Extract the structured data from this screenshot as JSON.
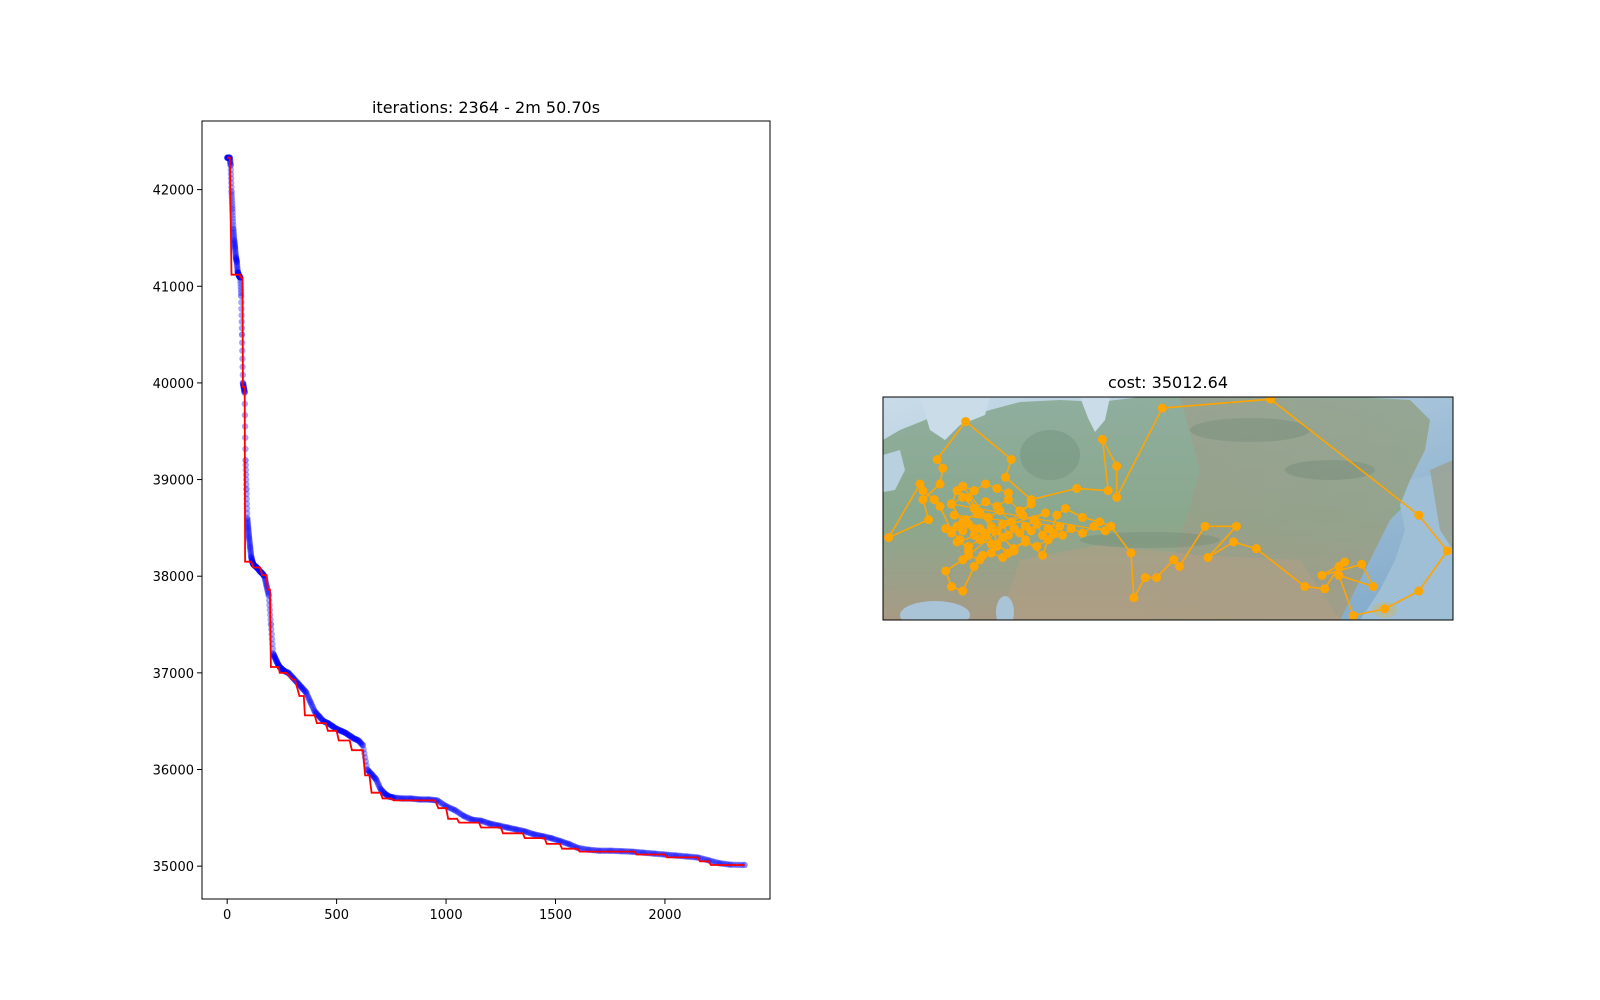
{
  "chart_data": [
    {
      "type": "line",
      "title": "iterations: 2364 - 2m 50.70s",
      "xlabel": "",
      "ylabel": "",
      "xlim": [
        -115,
        2480
      ],
      "ylim": [
        34660,
        42710
      ],
      "xticks": [
        0,
        500,
        1000,
        1500,
        2000
      ],
      "yticks": [
        35000,
        36000,
        37000,
        38000,
        39000,
        40000,
        41000,
        42000
      ],
      "grid": false,
      "legend": "none",
      "series": [
        {
          "kind": "best-cost-step",
          "color": "#ff0000",
          "x": [
            0,
            12,
            14,
            20,
            58,
            62,
            70,
            72,
            80,
            82,
            110,
            120,
            150,
            160,
            180,
            185,
            195,
            200,
            235,
            240,
            270,
            300,
            310,
            330,
            350,
            355,
            400,
            410,
            450,
            460,
            500,
            510,
            560,
            570,
            620,
            630,
            650,
            660,
            700,
            710,
            750,
            760,
            950,
            965,
            1000,
            1010,
            1050,
            1060,
            1150,
            1160,
            1250,
            1260,
            1350,
            1360,
            1450,
            1460,
            1520,
            1530,
            1600,
            1610,
            1860,
            1870,
            2000,
            2010,
            2150,
            2160,
            2200,
            2210,
            2364
          ],
          "y": [
            42330,
            42330,
            42060,
            41120,
            41120,
            41090,
            41090,
            39960,
            39960,
            38150,
            38150,
            38090,
            38090,
            38010,
            38010,
            37860,
            37860,
            37060,
            37060,
            37000,
            37000,
            36930,
            36930,
            36760,
            36760,
            36560,
            36560,
            36480,
            36480,
            36400,
            36400,
            36300,
            36300,
            36200,
            36200,
            35940,
            35940,
            35760,
            35760,
            35700,
            35700,
            35680,
            35680,
            35600,
            35600,
            35490,
            35490,
            35450,
            35450,
            35400,
            35400,
            35340,
            35340,
            35290,
            35290,
            35230,
            35230,
            35180,
            35180,
            35150,
            35150,
            35120,
            35120,
            35090,
            35090,
            35050,
            35050,
            35012,
            35012
          ]
        },
        {
          "kind": "candidate-cost-scatter",
          "color": "#0000ff",
          "x": [
            0,
            6,
            12,
            16,
            20,
            24,
            28,
            32,
            36,
            40,
            44,
            48,
            52,
            56,
            60,
            64,
            68,
            72,
            76,
            80,
            84,
            88,
            92,
            96,
            100,
            105,
            110,
            115,
            120,
            130,
            140,
            150,
            160,
            170,
            180,
            190,
            200,
            210,
            220,
            230,
            240,
            250,
            260,
            280,
            300,
            320,
            340,
            360,
            380,
            400,
            420,
            440,
            460,
            480,
            500,
            520,
            540,
            560,
            580,
            600,
            620,
            640,
            660,
            680,
            700,
            720,
            740,
            760,
            800,
            840,
            880,
            920,
            960,
            1000,
            1040,
            1080,
            1120,
            1160,
            1200,
            1240,
            1280,
            1320,
            1360,
            1400,
            1440,
            1480,
            1520,
            1560,
            1600,
            1650,
            1700,
            1750,
            1800,
            1850,
            1900,
            1950,
            2000,
            2050,
            2100,
            2150,
            2200,
            2250,
            2300,
            2364
          ],
          "y": [
            42330,
            42330,
            42330,
            42250,
            41980,
            41800,
            41600,
            41480,
            41400,
            41300,
            41250,
            41150,
            41120,
            41100,
            41090,
            40900,
            40500,
            40000,
            39950,
            39900,
            39200,
            38900,
            38600,
            38500,
            38400,
            38300,
            38200,
            38150,
            38120,
            38100,
            38080,
            38050,
            38030,
            38000,
            37900,
            37800,
            37500,
            37200,
            37150,
            37100,
            37060,
            37040,
            37020,
            37000,
            36950,
            36900,
            36850,
            36800,
            36700,
            36600,
            36550,
            36500,
            36480,
            36450,
            36420,
            36400,
            36380,
            36350,
            36320,
            36300,
            36250,
            36000,
            35950,
            35900,
            35800,
            35750,
            35720,
            35710,
            35700,
            35700,
            35690,
            35690,
            35680,
            35620,
            35580,
            35520,
            35480,
            35470,
            35440,
            35420,
            35400,
            35380,
            35360,
            35330,
            35310,
            35290,
            35260,
            35230,
            35190,
            35170,
            35160,
            35160,
            35155,
            35150,
            35140,
            35130,
            35120,
            35110,
            35100,
            35090,
            35060,
            35030,
            35015,
            35012
          ]
        }
      ]
    },
    {
      "type": "scatter",
      "title": "cost: 35012.64",
      "xlabel": "",
      "ylabel": "",
      "basemap": "shaded relief, northern Eurasia (Russia)",
      "line_color": "#ffa500",
      "marker_color": "#ffa500",
      "xlim": [
        0,
        100
      ],
      "ylim": [
        0,
        100
      ],
      "route": {
        "x": [
          1,
          8,
          7,
          10,
          10.5,
          9.5,
          14.5,
          22.5,
          21.5,
          26,
          34,
          39.5,
          38.5,
          41,
          41,
          49,
          68,
          94,
          99,
          94,
          88,
          82.5,
          80,
          86,
          84,
          77,
          81,
          80,
          77.5,
          74,
          65.5,
          61.5,
          57,
          62,
          56.5,
          52,
          51,
          48,
          46,
          44,
          43.5,
          40,
          38,
          35,
          32,
          30.5,
          28,
          25,
          22,
          20,
          18,
          16,
          14,
          12,
          13,
          15,
          17,
          19.5,
          20,
          17.5,
          16,
          14,
          12,
          11,
          14,
          15,
          13.5,
          12,
          10,
          9,
          7,
          6.5,
          1
        ],
        "y": [
          37,
          45,
          54,
          61,
          68,
          72,
          89,
          72,
          64,
          54,
          59,
          58,
          81,
          69,
          55,
          95,
          99,
          47,
          31,
          13,
          5,
          2,
          20,
          15,
          25,
          20,
          26,
          24,
          14,
          15,
          32,
          35,
          28,
          42,
          42,
          24,
          27,
          19,
          19,
          10,
          30,
          42,
          44,
          46,
          50,
          47,
          29,
          36,
          30,
          34,
          38,
          41,
          44,
          52,
          58,
          55,
          48,
          40,
          33,
          29,
          24,
          13,
          15,
          22,
          27,
          31,
          36,
          40,
          51,
          54,
          58,
          61,
          37
        ]
      },
      "cluster_points": {
        "x": [
          11,
          12,
          13,
          14,
          15,
          16,
          17,
          18,
          19,
          20,
          21,
          22,
          23,
          24,
          25,
          26,
          27,
          28,
          29,
          30,
          31,
          12.5,
          14.5,
          16.5,
          18.5,
          20.5,
          22.5,
          24.5,
          26.5,
          28.5,
          13,
          15,
          17,
          19,
          21,
          23,
          25,
          27,
          29,
          31.5,
          33,
          35,
          37,
          39,
          12,
          14,
          16,
          18,
          20,
          22,
          24,
          26,
          15,
          17,
          19,
          21,
          23,
          14,
          16,
          18,
          20,
          22
        ],
        "y": [
          41,
          39,
          42,
          40,
          43,
          38,
          41,
          39,
          42,
          40,
          43,
          38,
          41,
          39,
          42,
          40,
          43,
          38,
          41,
          39,
          42,
          47,
          45,
          48,
          46,
          49,
          44,
          47,
          45,
          48,
          35,
          33,
          36,
          34,
          37,
          32,
          35,
          33,
          36,
          38,
          41,
          39,
          42,
          40,
          52,
          55,
          50,
          53,
          51,
          54,
          49,
          52,
          29,
          27,
          30,
          28,
          31,
          60,
          58,
          61,
          59,
          57
        ]
      }
    }
  ]
}
